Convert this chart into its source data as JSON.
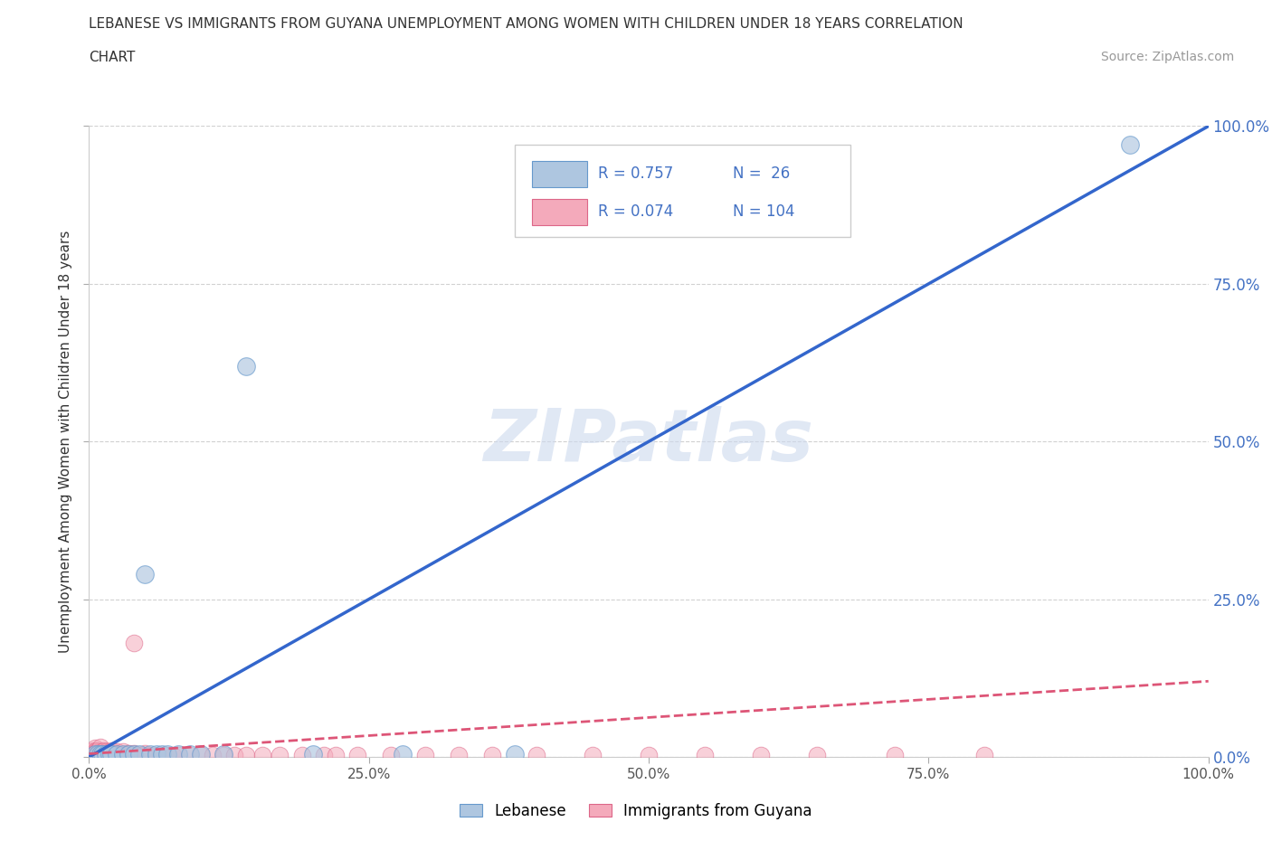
{
  "title_line1": "LEBANESE VS IMMIGRANTS FROM GUYANA UNEMPLOYMENT AMONG WOMEN WITH CHILDREN UNDER 18 YEARS CORRELATION",
  "title_line2": "CHART",
  "source": "Source: ZipAtlas.com",
  "ylabel": "Unemployment Among Women with Children Under 18 years",
  "xlim": [
    0,
    1.0
  ],
  "ylim": [
    0,
    1.0
  ],
  "xticks": [
    0.0,
    0.25,
    0.5,
    0.75,
    1.0
  ],
  "yticks": [
    0.0,
    0.25,
    0.5,
    0.75,
    1.0
  ],
  "xticklabels": [
    "0.0%",
    "25.0%",
    "50.0%",
    "75.0%",
    "100.0%"
  ],
  "right_yticklabels": [
    "0.0%",
    "25.0%",
    "50.0%",
    "75.0%",
    "100.0%"
  ],
  "watermark": "ZIPatlas",
  "blue_color": "#aec6e0",
  "pink_color": "#f4aabb",
  "blue_edge": "#6699cc",
  "pink_edge": "#dd6688",
  "blue_line_color": "#3366cc",
  "pink_line_color": "#dd5577",
  "legend_R_blue": "R = 0.757",
  "legend_N_blue": "N =  26",
  "legend_R_pink": "R = 0.074",
  "legend_N_pink": "N = 104",
  "legend_label_blue": "Lebanese",
  "legend_label_pink": "Immigrants from Guyana",
  "blue_R_color": "#4472c4",
  "blue_scatter_x": [
    0.005,
    0.008,
    0.01,
    0.012,
    0.015,
    0.018,
    0.02,
    0.025,
    0.03,
    0.035,
    0.04,
    0.045,
    0.05,
    0.055,
    0.06,
    0.065,
    0.07,
    0.08,
    0.09,
    0.1,
    0.12,
    0.14,
    0.2,
    0.28,
    0.38,
    0.93
  ],
  "blue_scatter_y": [
    0.005,
    0.005,
    0.005,
    0.005,
    0.005,
    0.005,
    0.005,
    0.005,
    0.005,
    0.005,
    0.005,
    0.005,
    0.29,
    0.005,
    0.005,
    0.005,
    0.005,
    0.005,
    0.005,
    0.005,
    0.005,
    0.62,
    0.005,
    0.005,
    0.005,
    0.97
  ],
  "pink_scatter_x": [
    0.003,
    0.003,
    0.003,
    0.004,
    0.004,
    0.004,
    0.005,
    0.005,
    0.005,
    0.005,
    0.006,
    0.006,
    0.006,
    0.007,
    0.007,
    0.007,
    0.008,
    0.008,
    0.008,
    0.009,
    0.009,
    0.009,
    0.01,
    0.01,
    0.01,
    0.01,
    0.012,
    0.012,
    0.012,
    0.013,
    0.013,
    0.013,
    0.014,
    0.015,
    0.015,
    0.015,
    0.016,
    0.016,
    0.017,
    0.017,
    0.018,
    0.018,
    0.019,
    0.02,
    0.02,
    0.02,
    0.022,
    0.022,
    0.023,
    0.025,
    0.025,
    0.025,
    0.026,
    0.027,
    0.028,
    0.03,
    0.03,
    0.03,
    0.032,
    0.033,
    0.035,
    0.035,
    0.037,
    0.038,
    0.04,
    0.04,
    0.04,
    0.042,
    0.043,
    0.045,
    0.047,
    0.048,
    0.05,
    0.05,
    0.055,
    0.06,
    0.065,
    0.07,
    0.075,
    0.08,
    0.09,
    0.1,
    0.11,
    0.12,
    0.13,
    0.14,
    0.155,
    0.17,
    0.19,
    0.21,
    0.22,
    0.24,
    0.27,
    0.3,
    0.33,
    0.36,
    0.4,
    0.45,
    0.5,
    0.55,
    0.6,
    0.65,
    0.72,
    0.8
  ],
  "pink_scatter_y": [
    0.003,
    0.005,
    0.008,
    0.003,
    0.005,
    0.01,
    0.003,
    0.006,
    0.009,
    0.015,
    0.003,
    0.005,
    0.01,
    0.003,
    0.005,
    0.009,
    0.003,
    0.006,
    0.01,
    0.003,
    0.005,
    0.008,
    0.003,
    0.006,
    0.009,
    0.016,
    0.003,
    0.005,
    0.008,
    0.003,
    0.006,
    0.01,
    0.003,
    0.003,
    0.006,
    0.009,
    0.003,
    0.006,
    0.003,
    0.006,
    0.003,
    0.006,
    0.003,
    0.003,
    0.006,
    0.01,
    0.003,
    0.006,
    0.003,
    0.003,
    0.005,
    0.008,
    0.003,
    0.003,
    0.003,
    0.003,
    0.005,
    0.008,
    0.003,
    0.003,
    0.003,
    0.006,
    0.003,
    0.003,
    0.003,
    0.006,
    0.18,
    0.003,
    0.003,
    0.003,
    0.003,
    0.003,
    0.003,
    0.006,
    0.003,
    0.003,
    0.003,
    0.003,
    0.003,
    0.003,
    0.003,
    0.003,
    0.003,
    0.003,
    0.003,
    0.003,
    0.003,
    0.003,
    0.003,
    0.003,
    0.003,
    0.003,
    0.003,
    0.003,
    0.003,
    0.003,
    0.003,
    0.003,
    0.003,
    0.003,
    0.003,
    0.003,
    0.003,
    0.003
  ],
  "blue_line_x0": 0.0,
  "blue_line_y0": 0.0,
  "blue_line_x1": 1.0,
  "blue_line_y1": 1.0,
  "pink_line_x0": 0.0,
  "pink_line_y0": 0.005,
  "pink_line_x1": 1.0,
  "pink_line_y1": 0.12
}
